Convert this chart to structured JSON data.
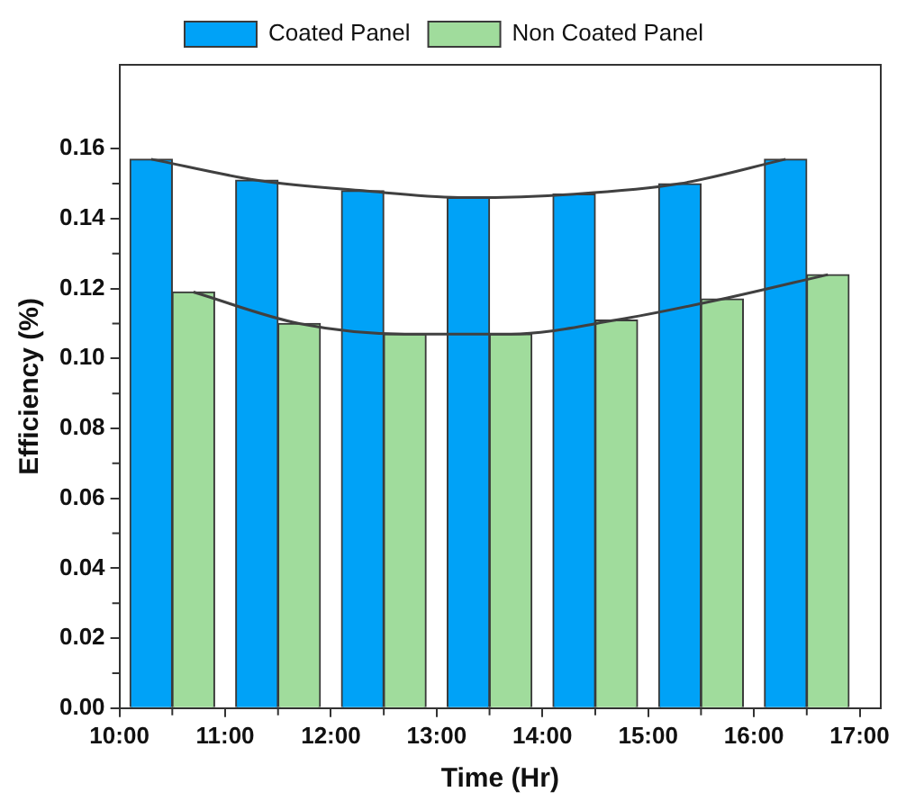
{
  "chart_data": {
    "type": "bar",
    "xlabel": "Time (Hr)",
    "ylabel": "Efficiency (%)",
    "xlim": [
      10,
      17.2
    ],
    "ylim": [
      0,
      0.184
    ],
    "xticks": [
      {
        "value": 10,
        "label": "10:00"
      },
      {
        "value": 10.5,
        "label": null
      },
      {
        "value": 11,
        "label": "11:00"
      },
      {
        "value": 11.5,
        "label": null
      },
      {
        "value": 12,
        "label": "12:00"
      },
      {
        "value": 12.5,
        "label": null
      },
      {
        "value": 13,
        "label": "13:00"
      },
      {
        "value": 13.5,
        "label": null
      },
      {
        "value": 14,
        "label": "14:00"
      },
      {
        "value": 14.5,
        "label": null
      },
      {
        "value": 15,
        "label": "15:00"
      },
      {
        "value": 15.5,
        "label": null
      },
      {
        "value": 16,
        "label": "16:00"
      },
      {
        "value": 16.5,
        "label": null
      },
      {
        "value": 17,
        "label": "17:00"
      }
    ],
    "yticks": [
      {
        "value": 0,
        "label": "0.00"
      },
      {
        "value": 0.01,
        "label": null
      },
      {
        "value": 0.02,
        "label": "0.02"
      },
      {
        "value": 0.03,
        "label": null
      },
      {
        "value": 0.04,
        "label": "0.04"
      },
      {
        "value": 0.05,
        "label": null
      },
      {
        "value": 0.06,
        "label": "0.06"
      },
      {
        "value": 0.07,
        "label": null
      },
      {
        "value": 0.08,
        "label": "0.08"
      },
      {
        "value": 0.09,
        "label": null
      },
      {
        "value": 0.1,
        "label": "0.10"
      },
      {
        "value": 0.11,
        "label": null
      },
      {
        "value": 0.12,
        "label": "0.12"
      },
      {
        "value": 0.13,
        "label": null
      },
      {
        "value": 0.14,
        "label": "0.14"
      },
      {
        "value": 0.15,
        "label": null
      },
      {
        "value": 0.16,
        "label": "0.16"
      }
    ],
    "grid": false,
    "legend": "top",
    "series": [
      {
        "name": "Coated Panel",
        "color": "#00a2f7",
        "x": [
          10.3,
          11.3,
          12.3,
          13.3,
          14.3,
          15.3,
          16.3
        ],
        "values": [
          0.157,
          0.151,
          0.148,
          0.146,
          0.147,
          0.15,
          0.157
        ]
      },
      {
        "name": "Non Coated Panel",
        "color": "#a0dc9c",
        "x": [
          10.7,
          11.7,
          12.7,
          13.7,
          14.7,
          15.7,
          16.7
        ],
        "values": [
          0.119,
          0.11,
          0.107,
          0.107,
          0.111,
          0.117,
          0.124
        ]
      },
      {
        "type": "line",
        "color": "#404040",
        "marker": "none",
        "x": [
          10.3,
          11.3,
          12.3,
          13.3,
          14.3,
          15.3,
          16.3
        ],
        "values": [
          0.157,
          0.151,
          0.148,
          0.146,
          0.147,
          0.15,
          0.157
        ]
      },
      {
        "type": "line",
        "color": "#404040",
        "marker": "none",
        "x": [
          10.7,
          11.7,
          12.7,
          13.7,
          14.7,
          15.7,
          16.7
        ],
        "values": [
          0.119,
          0.11,
          0.107,
          0.107,
          0.111,
          0.117,
          0.124
        ]
      }
    ]
  }
}
